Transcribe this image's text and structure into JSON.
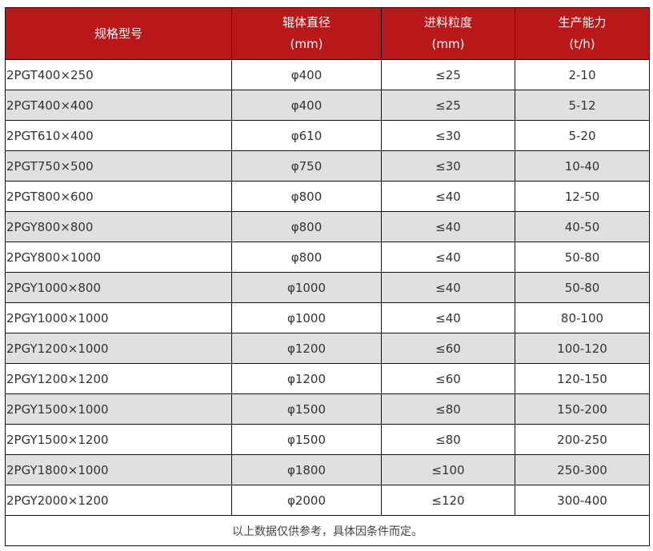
{
  "table": {
    "headers": [
      {
        "line1": "规格型号",
        "line2": ""
      },
      {
        "line1": "辊体直径",
        "line2": "(mm)"
      },
      {
        "line1": "进料粒度",
        "line2": "(mm)"
      },
      {
        "line1": "生产能力",
        "line2": "(t/h)"
      }
    ],
    "rows": [
      [
        "2PGT400×250",
        "φ400",
        "≤25",
        "2-10"
      ],
      [
        "2PGT400×400",
        "φ400",
        "≤25",
        "5-12"
      ],
      [
        "2PGT610×400",
        "φ610",
        "≤30",
        "5-20"
      ],
      [
        "2PGT750×500",
        "φ750",
        "≤30",
        "10-40"
      ],
      [
        "2PGT800×600",
        "φ800",
        "≤40",
        "12-50"
      ],
      [
        "2PGY800×800",
        "φ800",
        "≤40",
        "40-50"
      ],
      [
        "2PGY800×1000",
        "φ800",
        "≤40",
        "50-80"
      ],
      [
        "2PGY1000×800",
        "φ1000",
        "≤40",
        "50-80"
      ],
      [
        "2PGY1000×1000",
        "φ1000",
        "≤40",
        "80-100"
      ],
      [
        "2PGY1200×1000",
        "φ1200",
        "≤60",
        "100-120"
      ],
      [
        "2PGY1200×1200",
        "φ1200",
        "≤60",
        "120-150"
      ],
      [
        "2PGY1500×1000",
        "φ1500",
        "≤80",
        "150-200"
      ],
      [
        "2PGY1500×1200",
        "φ1500",
        "≤80",
        "200-250"
      ],
      [
        "2PGY1800×1000",
        "φ1800",
        "≤100",
        "250-300"
      ],
      [
        "2PGY2000×1200",
        "φ2000",
        "≤120",
        "300-400"
      ]
    ],
    "note": "以上数据仅供参考，具体因条件而定。"
  },
  "colors": {
    "header_bg": "#b8181a",
    "alt_row_bg": "#e0e0e0"
  }
}
